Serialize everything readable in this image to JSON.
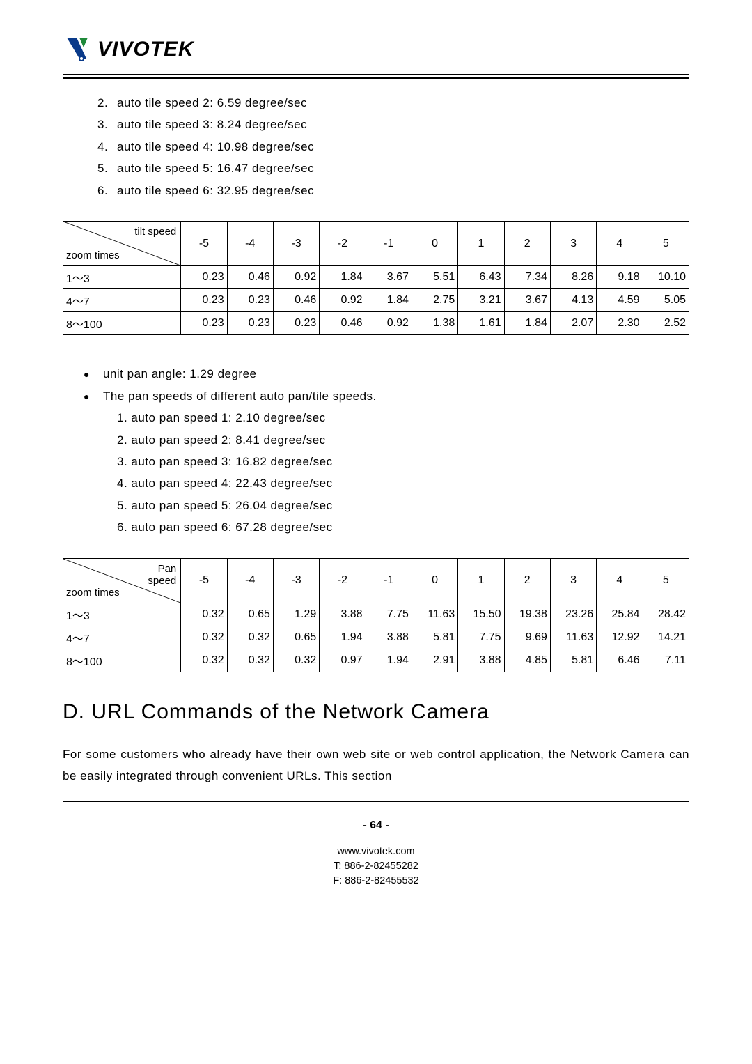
{
  "logo": {
    "text": "VIVOTEK"
  },
  "tile_speeds": {
    "items": [
      {
        "n": "2.",
        "text": "auto tile speed 2: 6.59 degree/sec"
      },
      {
        "n": "3.",
        "text": "auto tile speed 3: 8.24 degree/sec"
      },
      {
        "n": "4.",
        "text": "auto tile speed 4: 10.98 degree/sec"
      },
      {
        "n": "5.",
        "text": "auto tile speed 5: 16.47 degree/sec"
      },
      {
        "n": "6.",
        "text": "auto tile speed 6: 32.95 degree/sec"
      }
    ]
  },
  "tilt_table": {
    "corner_top": "tilt speed",
    "corner_bottom": "zoom times",
    "columns": [
      "-5",
      "-4",
      "-3",
      "-2",
      "-1",
      "0",
      "1",
      "2",
      "3",
      "4",
      "5"
    ],
    "rows": [
      {
        "label": "1～3",
        "values": [
          "0.23",
          "0.46",
          "0.92",
          "1.84",
          "3.67",
          "5.51",
          "6.43",
          "7.34",
          "8.26",
          "9.18",
          "10.10"
        ]
      },
      {
        "label": "4～7",
        "values": [
          "0.23",
          "0.23",
          "0.46",
          "0.92",
          "1.84",
          "2.75",
          "3.21",
          "3.67",
          "4.13",
          "4.59",
          "5.05"
        ]
      },
      {
        "label": "8～100",
        "values": [
          "0.23",
          "0.23",
          "0.23",
          "0.46",
          "0.92",
          "1.38",
          "1.61",
          "1.84",
          "2.07",
          "2.30",
          "2.52"
        ]
      }
    ]
  },
  "pan_info": {
    "bullet1": "unit pan angle: 1.29 degree",
    "bullet2": "The pan speeds of different auto pan/tile speeds.",
    "items": [
      {
        "n": "1.",
        "text": "auto pan speed 1: 2.10 degree/sec"
      },
      {
        "n": "2.",
        "text": "auto pan speed 2: 8.41 degree/sec"
      },
      {
        "n": "3.",
        "text": "auto pan speed 3: 16.82 degree/sec"
      },
      {
        "n": "4.",
        "text": "auto pan speed 4: 22.43 degree/sec"
      },
      {
        "n": "5.",
        "text": "auto pan speed 5: 26.04 degree/sec"
      },
      {
        "n": "6.",
        "text": "auto pan speed 6: 67.28 degree/sec"
      }
    ]
  },
  "pan_table": {
    "corner_top": "Pan speed",
    "corner_bottom": "zoom times",
    "columns": [
      "-5",
      "-4",
      "-3",
      "-2",
      "-1",
      "0",
      "1",
      "2",
      "3",
      "4",
      "5"
    ],
    "rows": [
      {
        "label": "1～3",
        "values": [
          "0.32",
          "0.65",
          "1.29",
          "3.88",
          "7.75",
          "11.63",
          "15.50",
          "19.38",
          "23.26",
          "25.84",
          "28.42"
        ]
      },
      {
        "label": "4～7",
        "values": [
          "0.32",
          "0.32",
          "0.65",
          "1.94",
          "3.88",
          "5.81",
          "7.75",
          "9.69",
          "11.63",
          "12.92",
          "14.21"
        ]
      },
      {
        "label": "8～100",
        "values": [
          "0.32",
          "0.32",
          "0.32",
          "0.97",
          "1.94",
          "2.91",
          "3.88",
          "4.85",
          "5.81",
          "6.46",
          "7.11"
        ]
      }
    ]
  },
  "section_heading": "D. URL Commands of the Network Camera",
  "section_body": "For some customers who already have their own web site or web control application, the Network Camera can be easily integrated through convenient URLs. This section",
  "footer": {
    "page": "- 64 -",
    "url": "www.vivotek.com",
    "tel": "T: 886-2-82455282",
    "fax": "F: 886-2-82455532"
  },
  "style": {
    "font_family": "Verdana, Arial, sans-serif",
    "text_color": "#000000",
    "bg_color": "#ffffff",
    "border_color": "#000000",
    "logo_accent_blue": "#0a3a8a",
    "logo_accent_green": "#1f8a3a"
  }
}
